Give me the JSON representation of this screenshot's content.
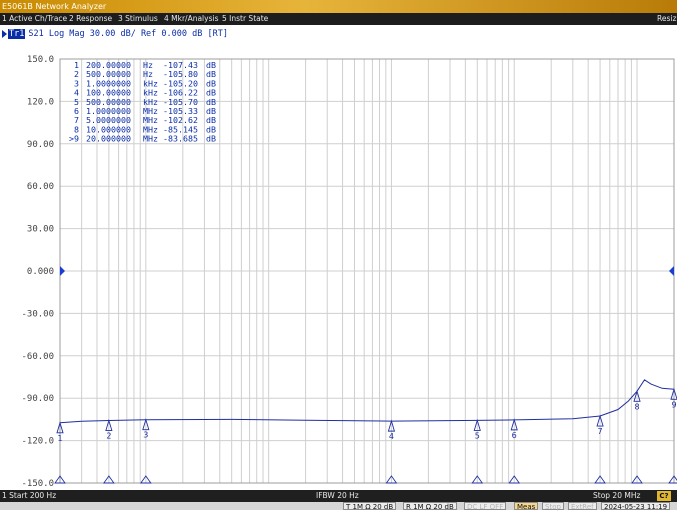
{
  "window": {
    "title": "E5061B Network Analyzer",
    "resize_label": "Resiz"
  },
  "menu": [
    "1 Active Ch/Trace",
    "2 Response",
    "3 Stimulus",
    "4 Mkr/Analysis",
    "5 Instr State"
  ],
  "trace": {
    "badge": "Tr1",
    "header": "S21 Log Mag 30.00 dB/ Ref 0.000 dB [RT]"
  },
  "markers": [
    {
      "id": "1",
      "freq": "200.00000",
      "unit": "Hz",
      "value": "-107.43",
      "db": "dB"
    },
    {
      "id": "2",
      "freq": "500.00000",
      "unit": "Hz",
      "value": "-105.80",
      "db": "dB"
    },
    {
      "id": "3",
      "freq": "1.0000000",
      "unit": "kHz",
      "value": "-105.20",
      "db": "dB"
    },
    {
      "id": "4",
      "freq": "100.00000",
      "unit": "kHz",
      "value": "-106.22",
      "db": "dB"
    },
    {
      "id": "5",
      "freq": "500.00000",
      "unit": "kHz",
      "value": "-105.70",
      "db": "dB"
    },
    {
      "id": "6",
      "freq": "1.0000000",
      "unit": "MHz",
      "value": "-105.33",
      "db": "dB"
    },
    {
      "id": "7",
      "freq": "5.0000000",
      "unit": "MHz",
      "value": "-102.62",
      "db": "dB"
    },
    {
      "id": "8",
      "freq": "10.000000",
      "unit": "MHz",
      "value": "-85.145",
      "db": "dB"
    },
    {
      "id": ">9",
      "freq": "20.000000",
      "unit": "MHz",
      "value": "-83.685",
      "db": "dB"
    }
  ],
  "yaxis": {
    "ticks": [
      "150.0",
      "120.0",
      "90.00",
      "60.00",
      "30.00",
      "0.000",
      "-30.00",
      "-60.00",
      "-90.00",
      "-120.0",
      "-150.0"
    ]
  },
  "footer": {
    "start": "1 Start 200 Hz",
    "ifbw": "IFBW 20 Hz",
    "stop": "Stop 20 MHz",
    "cal": "C?"
  },
  "status": [
    {
      "label": "T 1M Ω 20 dB",
      "style": "normal"
    },
    {
      "label": "R 1M Ω 20 dB",
      "style": "normal"
    },
    {
      "label": "DC LF OFF",
      "style": "dim"
    },
    {
      "label": "Meas",
      "style": "amber"
    },
    {
      "label": "Stop",
      "style": "dim"
    },
    {
      "label": "ExtRef",
      "style": "dim"
    },
    {
      "label": "2024-05-23 11:19",
      "style": "normal"
    }
  ],
  "colors": {
    "trace": "#1f2fa0",
    "grid": "#cfcfcf",
    "text": "#0a2da8",
    "chrome": "#1d1d1d"
  },
  "chart_data": {
    "type": "line",
    "xscale": "log",
    "xlim_hz": [
      200,
      20000000
    ],
    "ylim_db": [
      -150,
      150
    ],
    "reference_db": 0,
    "ylabel": "",
    "grid": true,
    "series": [
      {
        "x_hz": [
          200,
          300,
          500,
          1000,
          5000,
          20000,
          100000,
          500000,
          1000000,
          3000000,
          5000000,
          7000000,
          8500000,
          10000000,
          11500000,
          13000000,
          16000000,
          20000000
        ],
        "y_db": [
          -107.43,
          -106.3,
          -105.8,
          -105.2,
          -105.0,
          -105.6,
          -106.22,
          -105.7,
          -105.33,
          -104.5,
          -102.62,
          -98,
          -92,
          -85.145,
          -77,
          -80,
          -83,
          -83.685
        ]
      }
    ],
    "marker_points": [
      {
        "label": "1",
        "x_hz": 200,
        "y_db": -107.43
      },
      {
        "label": "2",
        "x_hz": 500,
        "y_db": -105.8
      },
      {
        "label": "3",
        "x_hz": 1000,
        "y_db": -105.2
      },
      {
        "label": "4",
        "x_hz": 100000,
        "y_db": -106.22
      },
      {
        "label": "5",
        "x_hz": 500000,
        "y_db": -105.7
      },
      {
        "label": "6",
        "x_hz": 1000000,
        "y_db": -105.33
      },
      {
        "label": "7",
        "x_hz": 5000000,
        "y_db": -102.62
      },
      {
        "label": "8",
        "x_hz": 10000000,
        "y_db": -85.145
      },
      {
        "label": "9",
        "x_hz": 20000000,
        "y_db": -83.685
      }
    ]
  }
}
